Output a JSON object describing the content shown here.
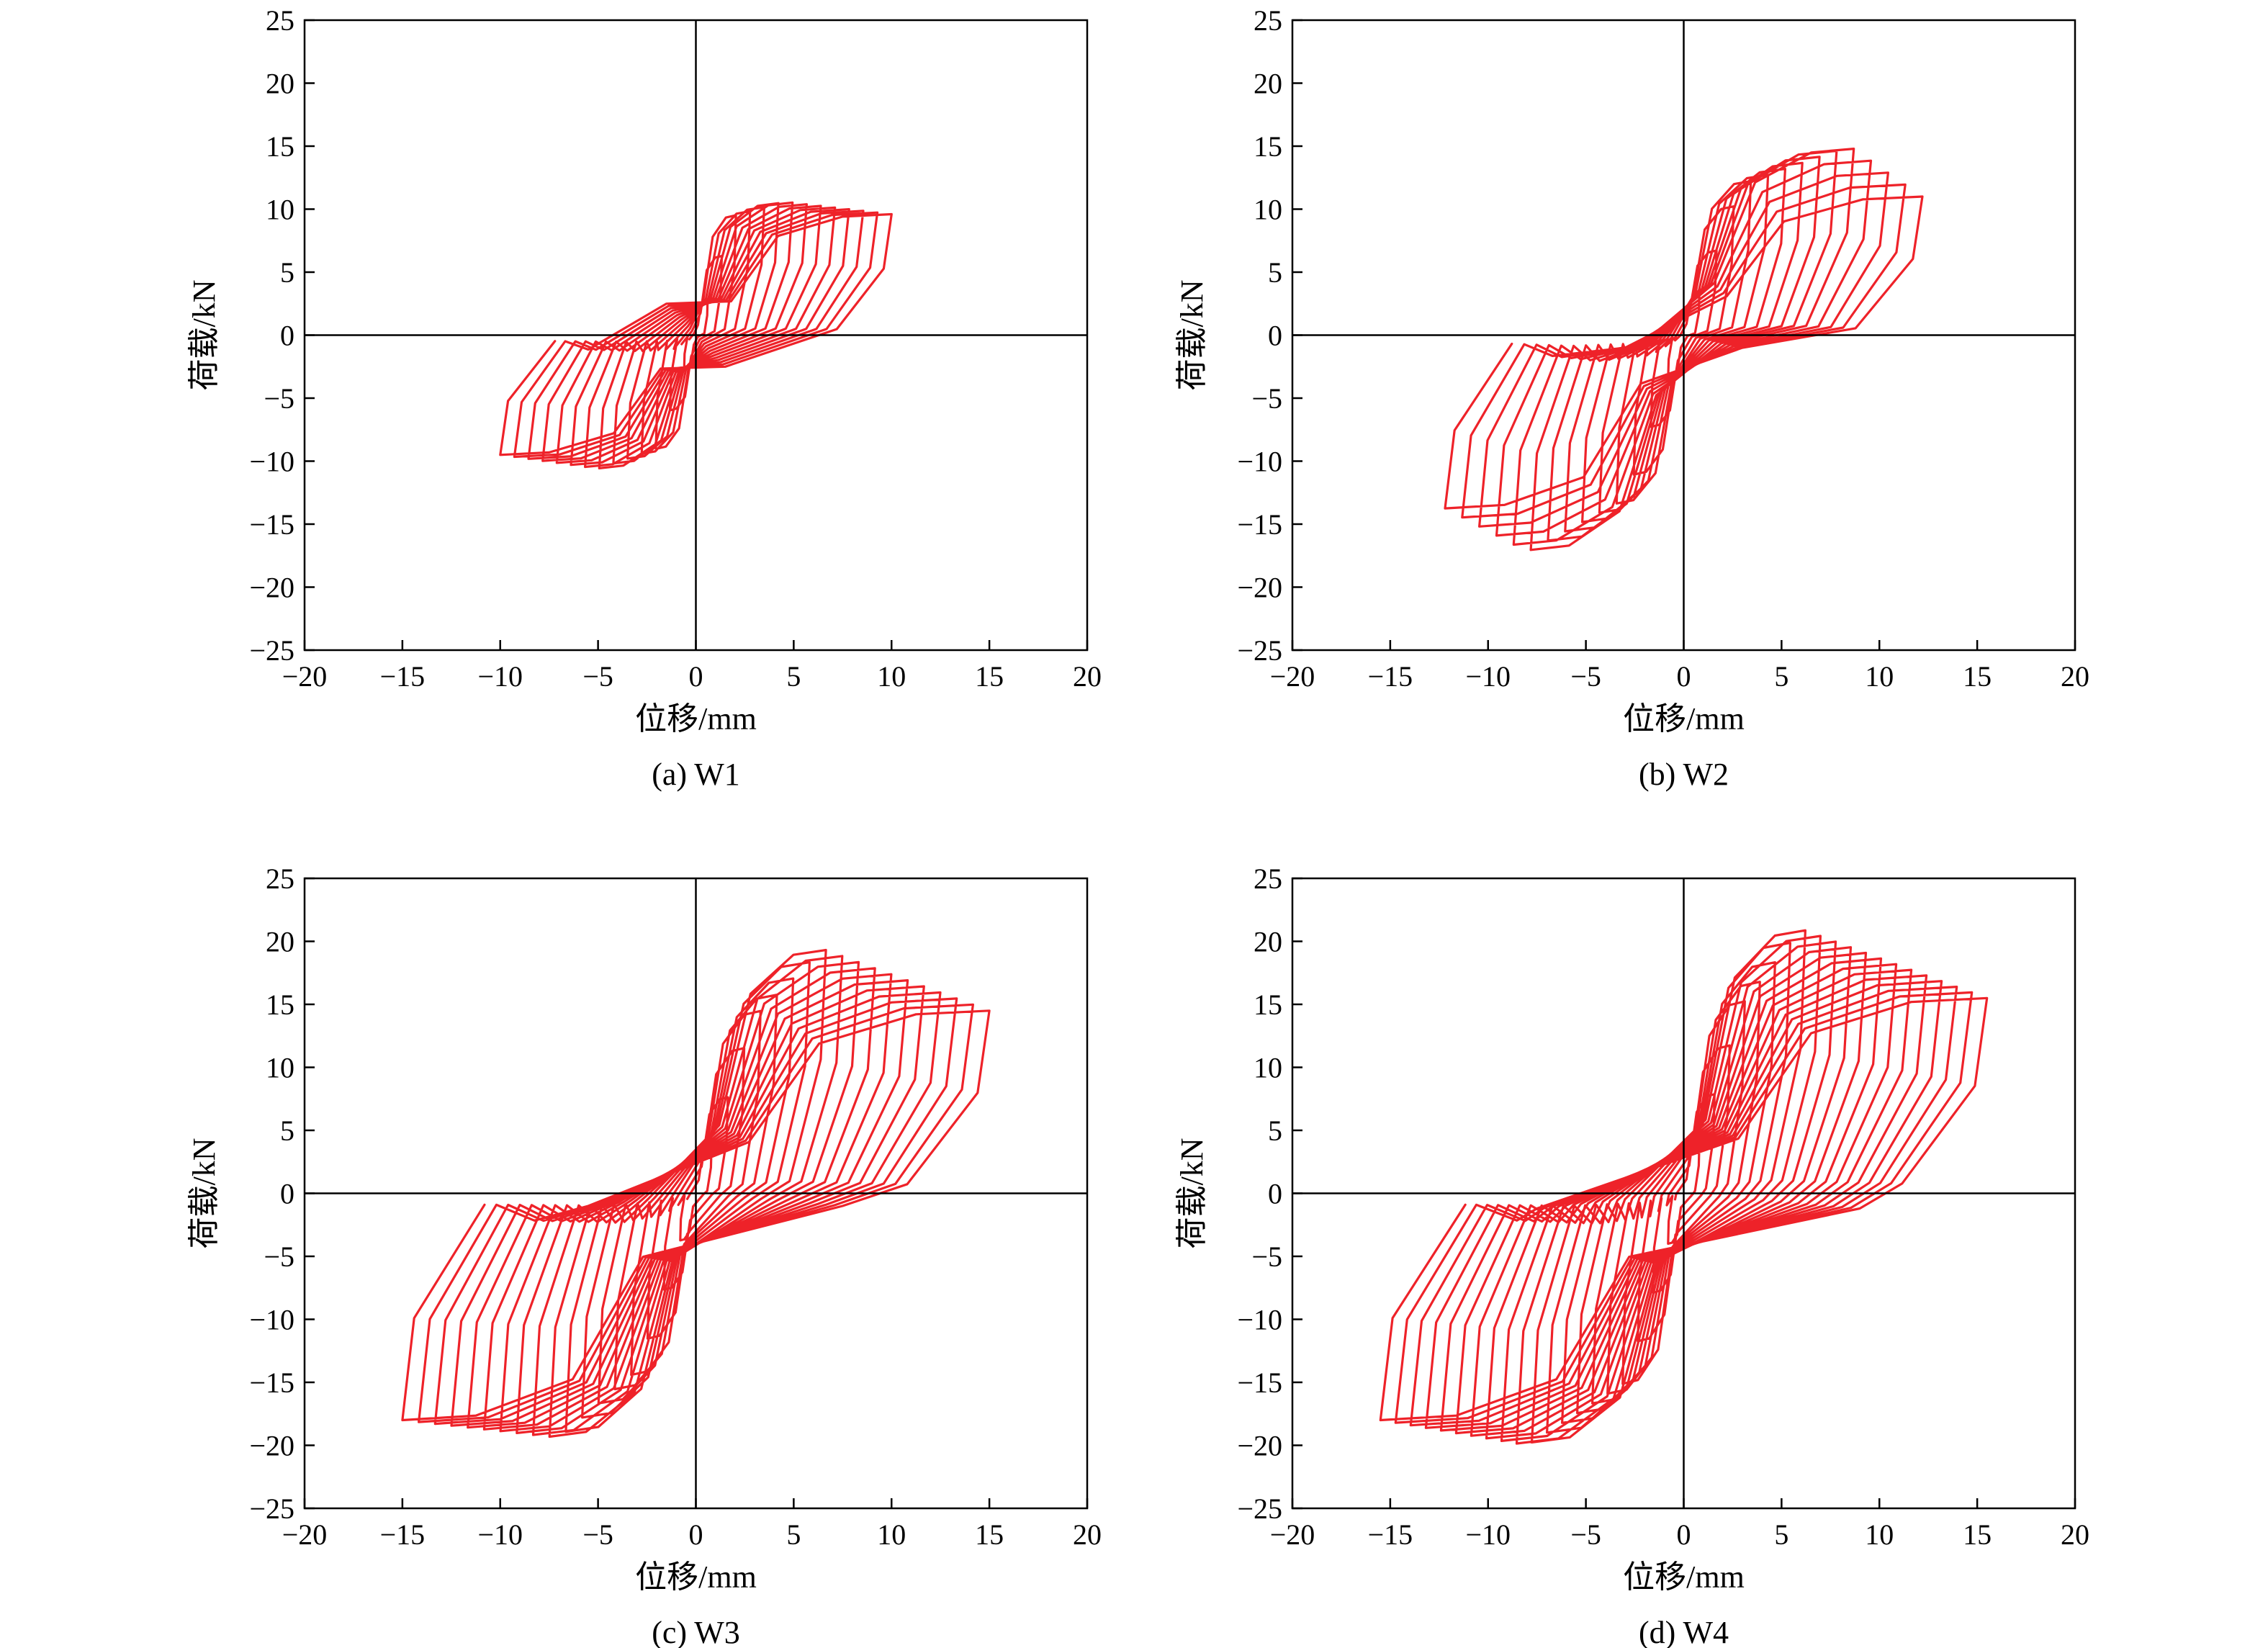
{
  "colors": {
    "series": "#ee2229",
    "axis": "#000000",
    "background": "#ffffff"
  },
  "chart_data": [
    {
      "type": "line",
      "caption": "(a) W1",
      "xlabel": "位移/mm",
      "ylabel": "荷载/kN",
      "xlim": [
        -20,
        20
      ],
      "ylim": [
        -25,
        25
      ],
      "xticks": [
        -20,
        -15,
        -10,
        -5,
        0,
        5,
        10,
        15,
        20
      ],
      "yticks": [
        -25,
        -20,
        -15,
        -10,
        -5,
        0,
        5,
        10,
        15,
        20,
        25
      ],
      "grid": false,
      "legend": "none",
      "series": [
        {
          "hysteresis": {
            "dmin": 0.6,
            "dmax": 10.0,
            "cycles": 14,
            "pos_peak": [
              [
                2.0,
                9.5
              ],
              [
                4.5,
                10.6
              ],
              [
                10.0,
                9.6
              ]
            ],
            "neg_peak": [
              [
                -2.0,
                -9.0
              ],
              [
                -5.0,
                -10.6
              ],
              [
                -10.0,
                -9.5
              ]
            ],
            "pinch_up": [
              -1.5,
              2.5
            ],
            "pinch_down": [
              1.5,
              -2.5
            ]
          }
        }
      ]
    },
    {
      "type": "line",
      "caption": "(b) W2",
      "xlabel": "位移/mm",
      "ylabel": "荷载/kN",
      "xlim": [
        -20,
        20
      ],
      "ylim": [
        -25,
        25
      ],
      "xticks": [
        -20,
        -15,
        -10,
        -5,
        0,
        5,
        10,
        15,
        20
      ],
      "yticks": [
        -25,
        -20,
        -15,
        -10,
        -5,
        0,
        5,
        10,
        15,
        20,
        25
      ],
      "grid": false,
      "legend": "none",
      "series": [
        {
          "hysteresis": {
            "dmin": 0.8,
            "dmax": 12.2,
            "cycles": 14,
            "pos_peak": [
              [
                3.0,
                12.0
              ],
              [
                8.5,
                15.0
              ],
              [
                12.2,
                11.0
              ]
            ],
            "neg_peak": [
              [
                -3.0,
                -13.0
              ],
              [
                -8.0,
                -17.2
              ],
              [
                -12.5,
                -13.5
              ]
            ],
            "pinch_up": [
              -3.0,
              -1.0
            ],
            "pinch_down": [
              3.0,
              -1.0
            ]
          }
        }
      ]
    },
    {
      "type": "line",
      "caption": "(c) W3",
      "xlabel": "位移/mm",
      "ylabel": "荷载/kN",
      "xlim": [
        -20,
        20
      ],
      "ylim": [
        -25,
        25
      ],
      "xticks": [
        -20,
        -15,
        -10,
        -5,
        0,
        5,
        10,
        15,
        20
      ],
      "yticks": [
        -25,
        -20,
        -15,
        -10,
        -5,
        0,
        5,
        10,
        15,
        20,
        25
      ],
      "grid": false,
      "legend": "none",
      "series": [
        {
          "hysteresis": {
            "dmin": 0.8,
            "dmax": 15.0,
            "cycles": 18,
            "pos_peak": [
              [
                3.0,
                14.0
              ],
              [
                6.5,
                19.4
              ],
              [
                15.0,
                14.5
              ]
            ],
            "neg_peak": [
              [
                -3.0,
                -14.0
              ],
              [
                -7.0,
                -19.4
              ],
              [
                -15.0,
                -18.0
              ]
            ],
            "pinch_up": [
              -5.5,
              -1.0
            ],
            "pinch_down": [
              7.5,
              -1.0
            ]
          }
        }
      ]
    },
    {
      "type": "line",
      "caption": "(d) W4",
      "xlabel": "位移/mm",
      "ylabel": "荷载/kN",
      "xlim": [
        -20,
        20
      ],
      "ylim": [
        -25,
        25
      ],
      "xticks": [
        -20,
        -15,
        -10,
        -5,
        0,
        5,
        10,
        15,
        20
      ],
      "yticks": [
        -25,
        -20,
        -15,
        -10,
        -5,
        0,
        5,
        10,
        15,
        20,
        25
      ],
      "grid": false,
      "legend": "none",
      "series": [
        {
          "hysteresis": {
            "dmin": 0.8,
            "dmax": 15.5,
            "cycles": 20,
            "pos_peak": [
              [
                3.0,
                15.0
              ],
              [
                6.0,
                21.0
              ],
              [
                15.5,
                15.5
              ]
            ],
            "neg_peak": [
              [
                -3.0,
                -15.0
              ],
              [
                -8.0,
                -20.0
              ],
              [
                -15.5,
                -18.0
              ]
            ],
            "pinch_up": [
              -7.5,
              -1.2
            ],
            "pinch_down": [
              9.0,
              -1.2
            ]
          }
        }
      ]
    }
  ]
}
